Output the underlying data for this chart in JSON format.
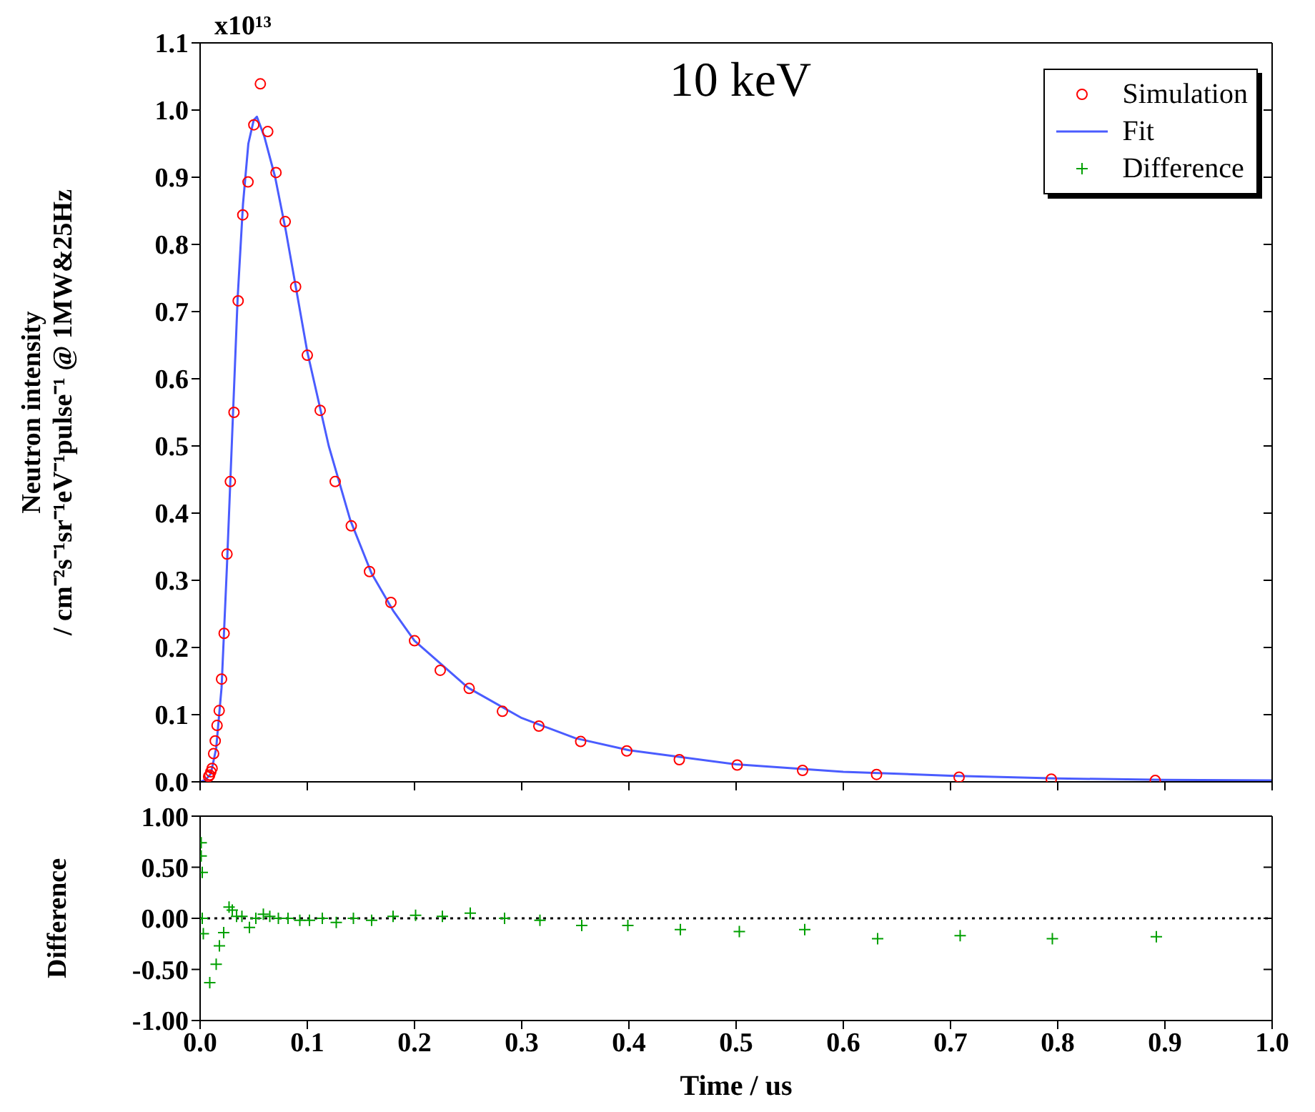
{
  "chart_data": [
    {
      "type": "scatter",
      "title": "10 keV",
      "ylabel": "Neutron intensity\n/ cm⁻²s⁻¹sr⁻¹eV⁻¹pulse⁻¹ @ 1MW&25Hz",
      "legend": "top right",
      "tick_labels": "y",
      "xlim": [
        0,
        1
      ],
      "xticks": [
        0,
        0.1,
        0.2,
        0.3,
        0.4,
        0.5,
        0.6,
        0.7,
        0.8,
        0.9,
        1
      ],
      "ylim": [
        0,
        1.1
      ],
      "yticks": [
        {
          "value": 0,
          "label": "0.0"
        },
        {
          "value": 0.1,
          "label": "0.1"
        },
        {
          "value": 0.2,
          "label": "0.2"
        },
        {
          "value": 0.3,
          "label": "0.3"
        },
        {
          "value": 0.4,
          "label": "0.4"
        },
        {
          "value": 0.5,
          "label": "0.5"
        },
        {
          "value": 0.6,
          "label": "0.6"
        },
        {
          "value": 0.7,
          "label": "0.7"
        },
        {
          "value": 0.8,
          "label": "0.8"
        },
        {
          "value": 0.9,
          "label": "0.9"
        },
        {
          "value": 1,
          "label": "1.0"
        },
        {
          "value": 1.1,
          "label": "1.1"
        }
      ],
      "annotations": [
        "x10¹³"
      ],
      "series": [
        {
          "name": "Simulation",
          "marker": "circle",
          "color": "#ff0000",
          "x": [
            0.00794,
            0.00891,
            0.01,
            0.0112,
            0.0126,
            0.0141,
            0.0158,
            0.0178,
            0.02,
            0.0224,
            0.0251,
            0.0282,
            0.0316,
            0.0355,
            0.0398,
            0.0447,
            0.0501,
            0.0562,
            0.0631,
            0.0708,
            0.0794,
            0.0891,
            0.1,
            0.112,
            0.126,
            0.141,
            0.158,
            0.178,
            0.2,
            0.224,
            0.251,
            0.282,
            0.316,
            0.355,
            0.398,
            0.447,
            0.501,
            0.562,
            0.631,
            0.708,
            0.794,
            0.891
          ],
          "values": [
            0.008,
            0.01,
            0.015,
            0.02,
            0.042,
            0.061,
            0.084,
            0.106,
            0.153,
            0.221,
            0.339,
            0.447,
            0.55,
            0.716,
            0.844,
            0.893,
            0.978,
            1.039,
            0.968,
            0.907,
            0.834,
            0.737,
            0.635,
            0.553,
            0.447,
            0.381,
            0.313,
            0.267,
            0.21,
            0.166,
            0.139,
            0.105,
            0.083,
            0.06,
            0.046,
            0.033,
            0.025,
            0.017,
            0.011,
            0.007,
            0.004,
            0.002
          ]
        },
        {
          "name": "Fit",
          "type": "line",
          "marker": "none",
          "color": "#4a5cff",
          "x": [
            0,
            0.005,
            0.01,
            0.015,
            0.02,
            0.025,
            0.03,
            0.035,
            0.04,
            0.045,
            0.05,
            0.053,
            0.06,
            0.07,
            0.08,
            0.09,
            0.1,
            0.12,
            0.14,
            0.16,
            0.18,
            0.2,
            0.25,
            0.3,
            0.35,
            0.4,
            0.5,
            0.6,
            0.7,
            0.8,
            0.9,
            1
          ],
          "values": [
            0,
            0.003,
            0.012,
            0.05,
            0.14,
            0.32,
            0.52,
            0.72,
            0.86,
            0.95,
            0.985,
            0.99,
            0.96,
            0.9,
            0.82,
            0.73,
            0.64,
            0.5,
            0.39,
            0.31,
            0.255,
            0.21,
            0.14,
            0.095,
            0.065,
            0.047,
            0.026,
            0.015,
            0.009,
            0.005,
            0.003,
            0.002
          ]
        }
      ]
    },
    {
      "type": "scatter",
      "ylabel": "Difference",
      "xlabel": "Time / us",
      "xlim": [
        0,
        1
      ],
      "xticks": [
        {
          "value": 0,
          "label": "0.0"
        },
        {
          "value": 0.1,
          "label": "0.1"
        },
        {
          "value": 0.2,
          "label": "0.2"
        },
        {
          "value": 0.3,
          "label": "0.3"
        },
        {
          "value": 0.4,
          "label": "0.4"
        },
        {
          "value": 0.5,
          "label": "0.5"
        },
        {
          "value": 0.6,
          "label": "0.6"
        },
        {
          "value": 0.7,
          "label": "0.7"
        },
        {
          "value": 0.8,
          "label": "0.8"
        },
        {
          "value": 0.9,
          "label": "0.9"
        },
        {
          "value": 1,
          "label": "1.0"
        }
      ],
      "ylim": [
        -1,
        1
      ],
      "yticks": [
        {
          "value": -1,
          "label": "-1.00"
        },
        {
          "value": -0.5,
          "label": "-0.50"
        },
        {
          "value": 0,
          "label": "0.00"
        },
        {
          "value": 0.5,
          "label": "0.50"
        },
        {
          "value": 1,
          "label": "1.00"
        }
      ],
      "ref_lines": [
        {
          "axis": "y",
          "value": 0,
          "color": "#000000",
          "line_style": "dotted"
        }
      ],
      "series": [
        {
          "name": "Difference",
          "marker": "cross",
          "color": "#00a000",
          "x": [
            0.001,
            0.001,
            0.002,
            0.002,
            0.003,
            0.009,
            0.015,
            0.018,
            0.022,
            0.027,
            0.03,
            0.034,
            0.039,
            0.046,
            0.052,
            0.059,
            0.065,
            0.073,
            0.082,
            0.093,
            0.102,
            0.114,
            0.127,
            0.143,
            0.16,
            0.18,
            0.201,
            0.226,
            0.252,
            0.284,
            0.317,
            0.356,
            0.399,
            0.448,
            0.503,
            0.564,
            0.632,
            0.709,
            0.795,
            0.892
          ],
          "values": [
            0.74,
            0.61,
            0.45,
            0,
            -0.15,
            -0.63,
            -0.45,
            -0.27,
            -0.14,
            0.11,
            0.08,
            0.02,
            0.02,
            -0.09,
            0,
            0.04,
            0.02,
            0,
            0,
            -0.02,
            -0.02,
            0,
            -0.04,
            0,
            -0.02,
            0.02,
            0.03,
            0.02,
            0.05,
            0,
            -0.02,
            -0.07,
            -0.07,
            -0.11,
            -0.13,
            -0.11,
            -0.2,
            -0.17,
            -0.2,
            -0.18
          ]
        }
      ]
    }
  ]
}
